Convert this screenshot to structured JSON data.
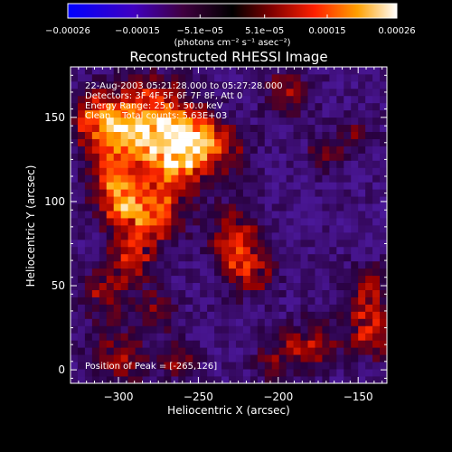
{
  "chart_data": {
    "type": "heatmap",
    "title": "Reconstructed RHESSI Image",
    "xlabel": "Heliocentric X (arcsec)",
    "ylabel": "Heliocentric Y (arcsec)",
    "xlim": [
      -330,
      -132
    ],
    "ylim": [
      -8,
      180
    ],
    "x_ticks": [
      -300,
      -250,
      -200,
      -150
    ],
    "x_tick_labels": [
      "−300",
      "−250",
      "−200",
      "−150"
    ],
    "y_ticks": [
      0,
      50,
      100,
      150
    ],
    "y_tick_labels": [
      "0",
      "50",
      "100",
      "150"
    ],
    "annotations": [
      "22-Aug-2003 05:21:28.000 to 05:27:28.000",
      "Detectors: 3F 4F 5F 6F 7F 8F, Att 0",
      "Energy Range: 25.0 - 50.0 keV",
      "Clean    Total counts: 5.63E+03"
    ],
    "peak_label": "Position of Peak = [-265,126]",
    "peak": [
      -265,
      126
    ],
    "colorbar": {
      "range": [
        -0.00026,
        0.00026
      ],
      "ticks": [
        -0.00026,
        -0.00015,
        -5.1e-05,
        5.1e-05,
        0.00015,
        0.00026
      ],
      "tick_labels": [
        "−0.00026",
        "−0.00015",
        "−5.1e−05",
        "5.1e−05",
        "0.00015",
        "0.00026"
      ],
      "unit_label": "(photons cm⁻² s⁻¹ asec⁻²)"
    },
    "blobs": [
      {
        "x": -265,
        "y": 126,
        "r": 14,
        "a": 0.00026
      },
      {
        "x": -280,
        "y": 150,
        "r": 16,
        "a": 0.0002
      },
      {
        "x": -300,
        "y": 140,
        "r": 13,
        "a": 0.00015
      },
      {
        "x": -315,
        "y": 150,
        "r": 12,
        "a": 0.00014
      },
      {
        "x": -252,
        "y": 142,
        "r": 10,
        "a": 0.00016
      },
      {
        "x": -235,
        "y": 130,
        "r": 12,
        "a": 0.00012
      },
      {
        "x": -295,
        "y": 98,
        "r": 12,
        "a": 0.0002
      },
      {
        "x": -275,
        "y": 92,
        "r": 11,
        "a": 0.00017
      },
      {
        "x": -305,
        "y": 115,
        "r": 10,
        "a": 0.00013
      },
      {
        "x": -292,
        "y": 65,
        "r": 11,
        "a": 0.00014
      },
      {
        "x": -310,
        "y": 45,
        "r": 10,
        "a": 0.00011
      },
      {
        "x": -275,
        "y": 35,
        "r": 9,
        "a": 0.0001
      },
      {
        "x": -228,
        "y": 78,
        "r": 12,
        "a": 0.00015
      },
      {
        "x": -218,
        "y": 58,
        "r": 11,
        "a": 0.00013
      },
      {
        "x": -300,
        "y": 8,
        "r": 12,
        "a": 0.00013
      },
      {
        "x": -262,
        "y": 5,
        "r": 8,
        "a": 0.0001
      },
      {
        "x": -200,
        "y": 8,
        "r": 10,
        "a": 0.00011
      },
      {
        "x": -178,
        "y": 15,
        "r": 10,
        "a": 0.00012
      },
      {
        "x": -142,
        "y": 25,
        "r": 12,
        "a": 0.00016
      },
      {
        "x": -145,
        "y": 50,
        "r": 9,
        "a": 0.00011
      },
      {
        "x": -195,
        "y": 165,
        "r": 10,
        "a": 0.00011
      },
      {
        "x": -170,
        "y": 130,
        "r": 8,
        "a": 9e-05
      },
      {
        "x": -150,
        "y": 140,
        "r": 7,
        "a": 8e-05
      }
    ]
  }
}
